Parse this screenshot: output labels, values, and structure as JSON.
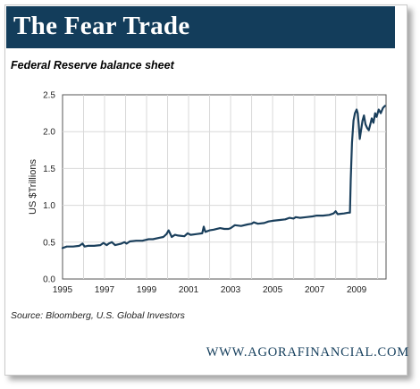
{
  "banner": {
    "title": "The Fear Trade"
  },
  "footer": {
    "source": "Source:  Bloomberg, U.S. Global Investors",
    "url": "WWW.AGORAFINANCIAL.COM"
  },
  "colors": {
    "banner_bg": "#133d5b",
    "line": "#1a3f5c",
    "grid": "#d9d9d9"
  },
  "chart_data": {
    "type": "line",
    "title": "Federal Reserve balance sheet",
    "xlabel": "",
    "ylabel": "US $Trillions",
    "xlim": [
      1995.0,
      2010.4
    ],
    "ylim": [
      0,
      2.5
    ],
    "grid": true,
    "x_ticks": [
      {
        "value": 1995,
        "label": "1995"
      },
      {
        "value": 1997,
        "label": "1997"
      },
      {
        "value": 1999,
        "label": "1999"
      },
      {
        "value": 2001,
        "label": "2001"
      },
      {
        "value": 2003,
        "label": "2003"
      },
      {
        "value": 2005,
        "label": "2005"
      },
      {
        "value": 2007,
        "label": "2007"
      },
      {
        "value": 2009,
        "label": "2009"
      }
    ],
    "x_grid": [
      1996,
      1998,
      2000,
      2002,
      2004,
      2006,
      2008,
      2010
    ],
    "y_ticks": [
      {
        "value": 0.0,
        "label": "0.0"
      },
      {
        "value": 0.5,
        "label": "0.5"
      },
      {
        "value": 1.0,
        "label": "1.0"
      },
      {
        "value": 1.5,
        "label": "1.5"
      },
      {
        "value": 2.0,
        "label": "2.0"
      },
      {
        "value": 2.5,
        "label": "2.5"
      }
    ],
    "series": [
      {
        "name": "",
        "x": [
          1995.0,
          1995.2,
          1995.5,
          1995.8,
          1995.95,
          1996.05,
          1996.2,
          1996.5,
          1996.8,
          1996.95,
          1997.1,
          1997.2,
          1997.35,
          1997.5,
          1997.8,
          1997.95,
          1998.05,
          1998.2,
          1998.5,
          1998.8,
          1998.95,
          1999.1,
          1999.3,
          1999.6,
          1999.8,
          1999.95,
          2000.05,
          2000.2,
          2000.35,
          2000.5,
          2000.8,
          2000.95,
          2001.1,
          2001.4,
          2001.65,
          2001.72,
          2001.8,
          2002.0,
          2002.2,
          2002.5,
          2002.7,
          2002.9,
          2003.0,
          2003.2,
          2003.5,
          2003.8,
          2004.0,
          2004.1,
          2004.3,
          2004.6,
          2004.8,
          2005.0,
          2005.3,
          2005.6,
          2005.8,
          2006.0,
          2006.1,
          2006.3,
          2006.6,
          2006.9,
          2007.1,
          2007.4,
          2007.7,
          2007.9,
          2008.0,
          2008.1,
          2008.4,
          2008.6,
          2008.68,
          2008.72,
          2008.78,
          2008.85,
          2008.92,
          2009.0,
          2009.05,
          2009.1,
          2009.15,
          2009.2,
          2009.28,
          2009.35,
          2009.42,
          2009.5,
          2009.58,
          2009.65,
          2009.72,
          2009.8,
          2009.88,
          2009.95,
          2010.05,
          2010.15,
          2010.25,
          2010.35
        ],
        "y": [
          0.42,
          0.44,
          0.44,
          0.45,
          0.48,
          0.44,
          0.45,
          0.45,
          0.46,
          0.49,
          0.46,
          0.48,
          0.5,
          0.46,
          0.48,
          0.5,
          0.48,
          0.51,
          0.52,
          0.52,
          0.53,
          0.54,
          0.54,
          0.56,
          0.57,
          0.61,
          0.66,
          0.57,
          0.6,
          0.59,
          0.58,
          0.62,
          0.6,
          0.61,
          0.62,
          0.71,
          0.64,
          0.66,
          0.67,
          0.69,
          0.68,
          0.68,
          0.69,
          0.73,
          0.72,
          0.74,
          0.75,
          0.77,
          0.75,
          0.76,
          0.78,
          0.79,
          0.8,
          0.81,
          0.83,
          0.82,
          0.84,
          0.83,
          0.84,
          0.85,
          0.86,
          0.86,
          0.87,
          0.89,
          0.92,
          0.88,
          0.89,
          0.9,
          0.9,
          1.35,
          1.85,
          2.15,
          2.25,
          2.3,
          2.25,
          2.1,
          1.9,
          2.0,
          2.15,
          2.22,
          2.1,
          2.05,
          2.02,
          2.1,
          2.18,
          2.12,
          2.25,
          2.2,
          2.3,
          2.25,
          2.32,
          2.35
        ]
      }
    ]
  }
}
